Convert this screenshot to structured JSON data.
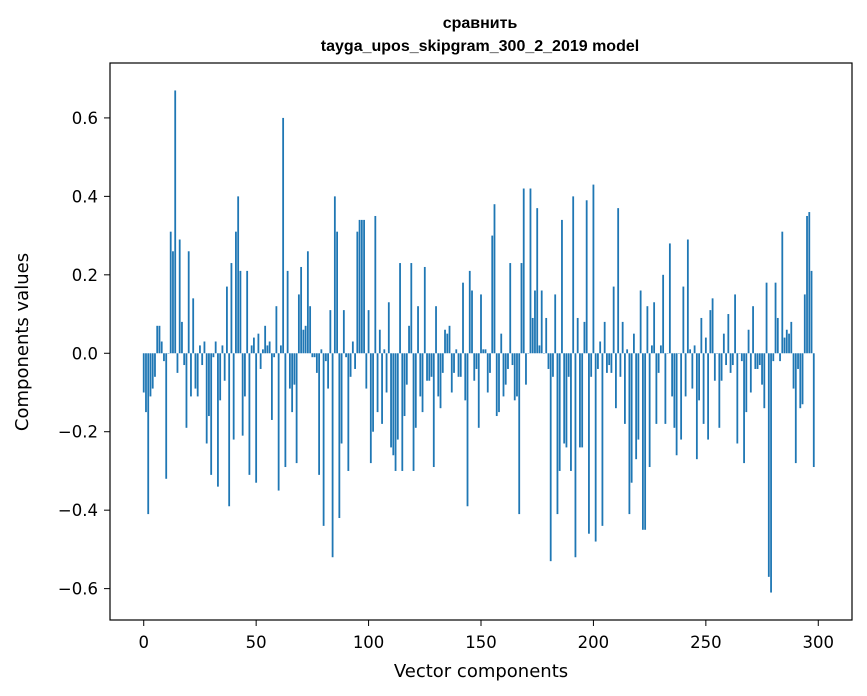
{
  "chart_data": {
    "type": "bar",
    "title": "сравнить",
    "subtitle": "tayga_upos_skipgram_300_2_2019 model",
    "xlabel": "Vector components",
    "ylabel": "Components values",
    "xlim": [
      -15,
      315
    ],
    "ylim": [
      -0.68,
      0.74
    ],
    "xticks": [
      0,
      50,
      100,
      150,
      200,
      250,
      300
    ],
    "xtick_labels": [
      "0",
      "50",
      "100",
      "150",
      "200",
      "250",
      "300"
    ],
    "yticks": [
      -0.6,
      -0.4,
      -0.2,
      0.0,
      0.2,
      0.4,
      0.6
    ],
    "ytick_labels": [
      "−0.6",
      "−0.4",
      "−0.2",
      "0.0",
      "0.2",
      "0.4",
      "0.6"
    ],
    "grid": false,
    "bar_color": "#1f77b4",
    "x_start": 0,
    "values": [
      -0.1,
      -0.15,
      -0.41,
      -0.11,
      -0.09,
      -0.06,
      0.07,
      0.07,
      0.03,
      -0.02,
      -0.32,
      0.0,
      0.31,
      0.26,
      0.67,
      -0.05,
      0.29,
      0.08,
      -0.03,
      -0.19,
      0.26,
      -0.11,
      0.14,
      -0.09,
      -0.11,
      0.02,
      -0.03,
      0.03,
      -0.23,
      -0.16,
      -0.31,
      -0.01,
      0.03,
      -0.34,
      -0.12,
      0.02,
      -0.07,
      0.17,
      -0.39,
      0.23,
      -0.22,
      0.31,
      0.4,
      0.21,
      -0.21,
      -0.11,
      0.21,
      -0.31,
      0.02,
      0.04,
      -0.33,
      0.05,
      -0.04,
      0.01,
      0.07,
      0.02,
      0.03,
      -0.17,
      -0.01,
      0.12,
      -0.35,
      0.02,
      0.6,
      -0.29,
      0.21,
      -0.09,
      -0.15,
      -0.08,
      -0.28,
      0.15,
      0.22,
      0.06,
      0.07,
      0.26,
      0.12,
      -0.01,
      -0.01,
      -0.05,
      -0.31,
      0.01,
      -0.44,
      -0.02,
      -0.09,
      0.11,
      -0.52,
      0.4,
      0.31,
      -0.42,
      -0.23,
      0.11,
      -0.01,
      -0.3,
      -0.06,
      0.03,
      -0.04,
      0.31,
      0.34,
      0.34,
      0.34,
      -0.09,
      0.11,
      -0.28,
      -0.2,
      0.35,
      -0.15,
      0.06,
      -0.18,
      0.01,
      -0.1,
      0.13,
      -0.24,
      -0.26,
      -0.3,
      -0.22,
      0.23,
      -0.3,
      -0.16,
      -0.08,
      0.07,
      0.23,
      -0.3,
      -0.19,
      0.12,
      -0.11,
      -0.15,
      0.22,
      -0.07,
      -0.07,
      -0.06,
      -0.29,
      0.12,
      -0.11,
      -0.14,
      -0.05,
      0.06,
      0.05,
      0.07,
      -0.1,
      -0.05,
      0.01,
      -0.06,
      -0.06,
      0.18,
      -0.12,
      -0.39,
      0.21,
      0.16,
      -0.07,
      -0.04,
      -0.19,
      0.15,
      0.01,
      0.01,
      -0.1,
      -0.05,
      0.3,
      0.38,
      -0.16,
      -0.15,
      0.05,
      -0.11,
      -0.08,
      -0.04,
      0.23,
      -0.03,
      -0.12,
      -0.11,
      -0.41,
      0.23,
      0.42,
      -0.08,
      0.0,
      0.42,
      0.09,
      0.16,
      0.37,
      0.02,
      0.16,
      0.0,
      0.09,
      -0.04,
      -0.53,
      -0.06,
      0.15,
      -0.41,
      -0.3,
      0.34,
      -0.23,
      -0.24,
      -0.06,
      -0.3,
      0.4,
      -0.52,
      0.09,
      -0.24,
      -0.24,
      0.08,
      0.39,
      -0.46,
      -0.06,
      0.43,
      -0.48,
      -0.04,
      0.03,
      -0.44,
      0.08,
      -0.05,
      -0.03,
      -0.05,
      0.17,
      -0.14,
      0.37,
      -0.06,
      0.08,
      -0.18,
      0.01,
      -0.41,
      -0.33,
      0.05,
      -0.27,
      -0.22,
      0.16,
      -0.45,
      -0.45,
      0.12,
      -0.29,
      0.02,
      0.13,
      -0.18,
      -0.05,
      0.02,
      0.2,
      -0.18,
      0.0,
      0.28,
      -0.11,
      -0.19,
      -0.26,
      0.0,
      -0.22,
      0.17,
      -0.11,
      0.29,
      0.01,
      -0.09,
      0.02,
      -0.27,
      -0.12,
      0.09,
      -0.18,
      0.04,
      -0.22,
      0.11,
      0.14,
      -0.07,
      0.0,
      -0.19,
      -0.07,
      0.05,
      -0.03,
      0.1,
      -0.05,
      -0.03,
      0.15,
      -0.23,
      0.0,
      -0.02,
      -0.28,
      -0.15,
      0.06,
      -0.1,
      0.12,
      -0.04,
      -0.04,
      -0.03,
      -0.08,
      -0.14,
      0.18,
      -0.57,
      -0.61,
      -0.02,
      0.18,
      0.09,
      -0.02,
      0.31,
      0.04,
      0.06,
      0.05,
      0.08,
      -0.09,
      -0.28,
      -0.04,
      -0.14,
      -0.13,
      0.15,
      0.35,
      0.36,
      0.21,
      -0.29
    ]
  }
}
